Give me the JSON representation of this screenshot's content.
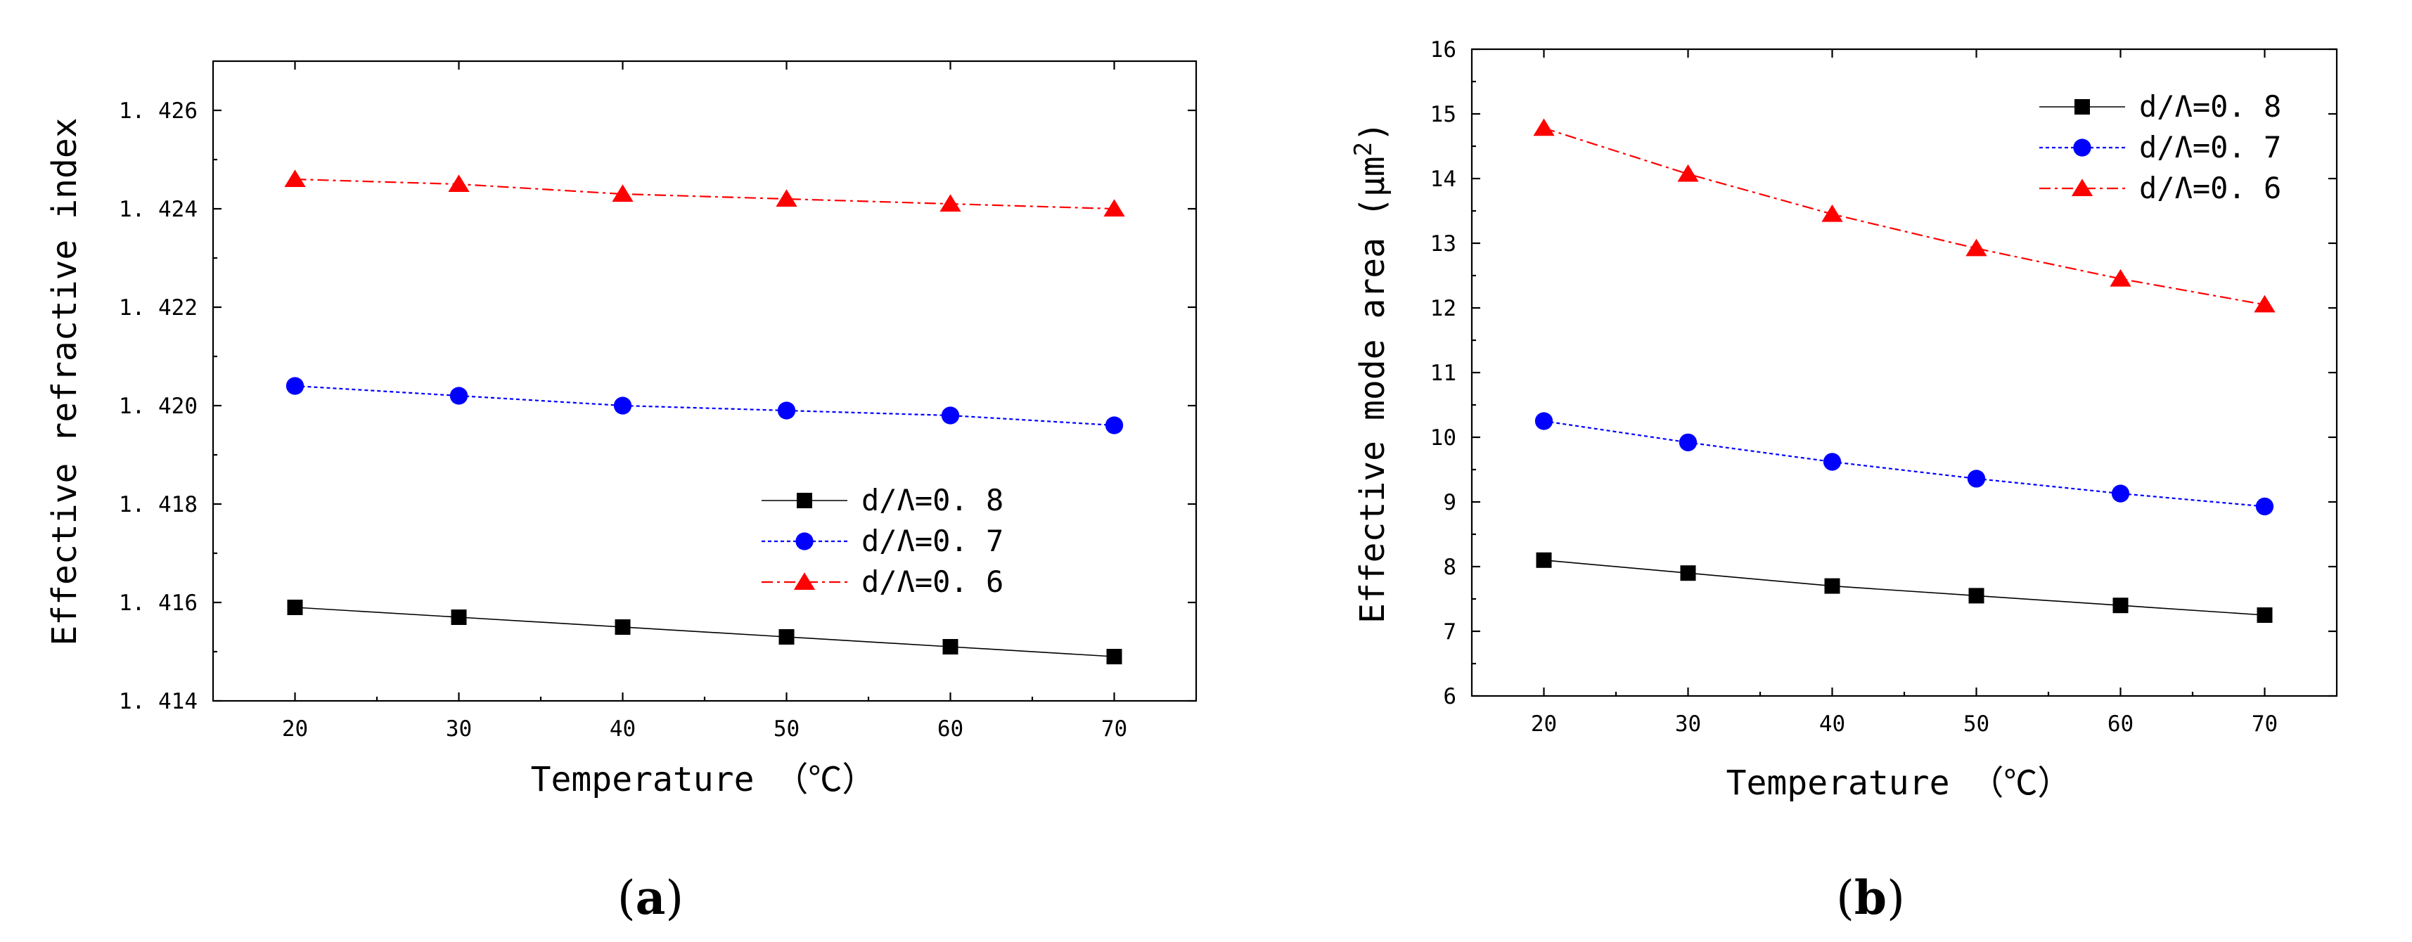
{
  "chart_data": [
    {
      "type": "line",
      "panel": "a",
      "xlabel": "Temperature （℃）",
      "ylabel": "Effective refractive index",
      "x": [
        20,
        30,
        40,
        50,
        60,
        70
      ],
      "xlim": [
        15,
        75
      ],
      "ylim": [
        1.414,
        1.427
      ],
      "xticks": [
        20,
        30,
        40,
        50,
        60,
        70
      ],
      "xtick_labels": [
        "20",
        "30",
        "40",
        "50",
        "60",
        "70"
      ],
      "yticks": [
        1.414,
        1.416,
        1.418,
        1.42,
        1.422,
        1.424,
        1.426
      ],
      "ytick_labels": [
        "1. 414",
        "1. 416",
        "1. 418",
        "1. 420",
        "1. 422",
        "1. 424",
        "1. 426"
      ],
      "legend_position": "middle-right",
      "series": [
        {
          "name": "d/Λ=0. 8",
          "color": "#000000",
          "marker": "square",
          "line": "solid",
          "values": [
            1.4159,
            1.4157,
            1.4155,
            1.4153,
            1.4151,
            1.4149
          ]
        },
        {
          "name": "d/Λ=0. 7",
          "color": "#0000ff",
          "marker": "circle",
          "line": "dotted",
          "values": [
            1.4204,
            1.4202,
            1.42,
            1.4199,
            1.4198,
            1.4196
          ]
        },
        {
          "name": "d/Λ=0. 6",
          "color": "#ff0000",
          "marker": "triangle",
          "line": "dashdot",
          "values": [
            1.4246,
            1.4245,
            1.4243,
            1.4242,
            1.4241,
            1.424
          ]
        }
      ]
    },
    {
      "type": "line",
      "panel": "b",
      "xlabel": "Temperature （℃）",
      "ylabel": "Effective mode area (μm",
      "ylabel_sup": "2",
      "ylabel_close": ")",
      "x": [
        20,
        30,
        40,
        50,
        60,
        70
      ],
      "xlim": [
        15,
        75
      ],
      "ylim": [
        6,
        16
      ],
      "xticks": [
        20,
        30,
        40,
        50,
        60,
        70
      ],
      "xtick_labels": [
        "20",
        "30",
        "40",
        "50",
        "60",
        "70"
      ],
      "yticks": [
        6,
        7,
        8,
        9,
        10,
        11,
        12,
        13,
        14,
        15,
        16
      ],
      "ytick_labels": [
        "6",
        "7",
        "8",
        "9",
        "10",
        "11",
        "12",
        "13",
        "14",
        "15",
        "16"
      ],
      "legend_position": "top-right",
      "series": [
        {
          "name": "d/Λ=0. 8",
          "color": "#000000",
          "marker": "square",
          "line": "solid",
          "values": [
            8.1,
            7.9,
            7.7,
            7.55,
            7.4,
            7.25
          ]
        },
        {
          "name": "d/Λ=0. 7",
          "color": "#0000ff",
          "marker": "circle",
          "line": "dotted",
          "values": [
            10.25,
            9.92,
            9.62,
            9.36,
            9.13,
            8.93
          ]
        },
        {
          "name": "d/Λ=0. 6",
          "color": "#ff0000",
          "marker": "triangle",
          "line": "dashdot",
          "values": [
            14.78,
            14.07,
            13.45,
            12.92,
            12.45,
            12.05
          ]
        }
      ]
    }
  ],
  "captions": {
    "a": {
      "open": "(",
      "letter": "a",
      "close": ")"
    },
    "b": {
      "open": "(",
      "letter": "b",
      "close": ")"
    }
  }
}
